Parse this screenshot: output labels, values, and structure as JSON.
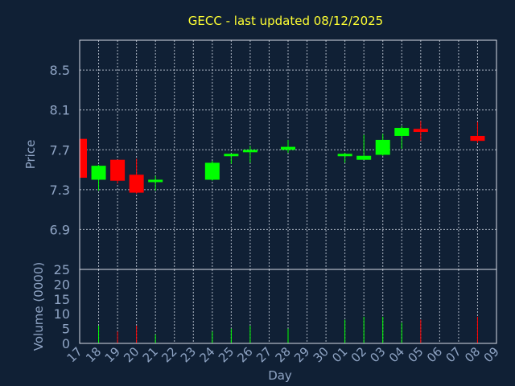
{
  "chart_data": {
    "type": "candlestick",
    "title": "GECC - last updated 08/12/2025",
    "xlabel": "Day",
    "price_panel": {
      "ylabel": "Price",
      "yticks": [
        6.9,
        7.3,
        7.7,
        8.1,
        8.5
      ],
      "ylim": [
        6.5,
        8.8
      ]
    },
    "volume_panel": {
      "ylabel": "Volume (0000)",
      "yticks": [
        0,
        5,
        10,
        15,
        20,
        25
      ],
      "ylim": [
        0,
        25
      ]
    },
    "x_tick_labels": [
      "17",
      "18",
      "19",
      "20",
      "21",
      "22",
      "23",
      "24",
      "25",
      "26",
      "27",
      "28",
      "29",
      "30",
      "01",
      "02",
      "03",
      "04",
      "05",
      "06",
      "07",
      "08",
      "09"
    ],
    "grid": true,
    "colors": {
      "up": "#00ff00",
      "down": "#ff0000",
      "background": "#102035",
      "title": "#ffff33",
      "axis_text": "#8fa4c4"
    },
    "candles": [
      {
        "day": "17",
        "open": 7.81,
        "high": 7.82,
        "low": 7.42,
        "close": 7.42,
        "volume": 7
      },
      {
        "day": "18",
        "open": 7.4,
        "high": 7.55,
        "low": 7.29,
        "close": 7.54,
        "volume": 6
      },
      {
        "day": "19",
        "open": 7.6,
        "high": 7.6,
        "low": 7.36,
        "close": 7.39,
        "volume": 4
      },
      {
        "day": "20",
        "open": 7.45,
        "high": 7.61,
        "low": 7.26,
        "close": 7.27,
        "volume": 6
      },
      {
        "day": "21",
        "open": 7.38,
        "high": 7.44,
        "low": 7.29,
        "close": 7.4,
        "volume": 3
      },
      {
        "day": "24",
        "open": 7.4,
        "high": 7.59,
        "low": 7.39,
        "close": 7.57,
        "volume": 4
      },
      {
        "day": "25",
        "open": 7.64,
        "high": 7.66,
        "low": 7.56,
        "close": 7.66,
        "volume": 5
      },
      {
        "day": "26",
        "open": 7.68,
        "high": 7.74,
        "low": 7.57,
        "close": 7.7,
        "volume": 6
      },
      {
        "day": "28",
        "open": 7.7,
        "high": 7.8,
        "low": 7.67,
        "close": 7.73,
        "volume": 5
      },
      {
        "day": "01",
        "open": 7.64,
        "high": 7.67,
        "low": 7.57,
        "close": 7.66,
        "volume": 8
      },
      {
        "day": "02",
        "open": 7.6,
        "high": 7.85,
        "low": 7.6,
        "close": 7.64,
        "volume": 9
      },
      {
        "day": "03",
        "open": 7.65,
        "high": 7.86,
        "low": 7.64,
        "close": 7.8,
        "volume": 9
      },
      {
        "day": "04",
        "open": 7.84,
        "high": 7.94,
        "low": 7.71,
        "close": 7.92,
        "volume": 7
      },
      {
        "day": "05",
        "open": 7.91,
        "high": 7.99,
        "low": 7.79,
        "close": 7.88,
        "volume": 8
      },
      {
        "day": "08",
        "open": 7.84,
        "high": 7.98,
        "low": 7.77,
        "close": 7.79,
        "volume": 9
      }
    ]
  }
}
